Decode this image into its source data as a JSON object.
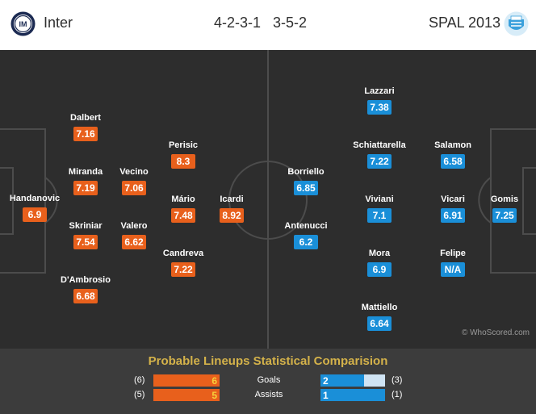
{
  "header": {
    "home_team": "Inter",
    "away_team": "SPAL 2013",
    "home_formation": "4-2-3-1",
    "away_formation": "3-5-2"
  },
  "colors": {
    "home": "#e8601c",
    "away": "#1a8fd8",
    "pitch": "#2d2d2d",
    "title": "#d4b24a"
  },
  "home_players": [
    {
      "name": "Handanovic",
      "rating": "6.9"
    },
    {
      "name": "Dalbert",
      "rating": "7.16"
    },
    {
      "name": "Miranda",
      "rating": "7.19"
    },
    {
      "name": "Skriniar",
      "rating": "7.54"
    },
    {
      "name": "D'Ambrosio",
      "rating": "6.68"
    },
    {
      "name": "Vecino",
      "rating": "7.06"
    },
    {
      "name": "Valero",
      "rating": "6.62"
    },
    {
      "name": "Perisic",
      "rating": "8.3"
    },
    {
      "name": "Mário",
      "rating": "7.48"
    },
    {
      "name": "Candreva",
      "rating": "7.22"
    },
    {
      "name": "Icardi",
      "rating": "8.92"
    }
  ],
  "away_players": [
    {
      "name": "Borriello",
      "rating": "6.85"
    },
    {
      "name": "Antenucci",
      "rating": "6.2"
    },
    {
      "name": "Lazzari",
      "rating": "7.38"
    },
    {
      "name": "Schiattarella",
      "rating": "7.22"
    },
    {
      "name": "Viviani",
      "rating": "7.1"
    },
    {
      "name": "Mora",
      "rating": "6.9"
    },
    {
      "name": "Mattiello",
      "rating": "6.64"
    },
    {
      "name": "Salamon",
      "rating": "6.58"
    },
    {
      "name": "Vicari",
      "rating": "6.91"
    },
    {
      "name": "Felipe",
      "rating": "N/A"
    },
    {
      "name": "Gomis",
      "rating": "7.25"
    }
  ],
  "watermark": "© WhoScored.com",
  "comparison": {
    "title": "Probable Lineups Statistical Comparision",
    "stats": [
      {
        "label": "Goals",
        "home_value": "6",
        "home_total": "(6)",
        "away_value": "2",
        "away_total": "(3)",
        "away_fraction": 0.67
      },
      {
        "label": "Assists",
        "home_value": "5",
        "home_total": "(5)",
        "away_value": "1",
        "away_total": "(1)",
        "away_fraction": 1.0
      }
    ]
  }
}
